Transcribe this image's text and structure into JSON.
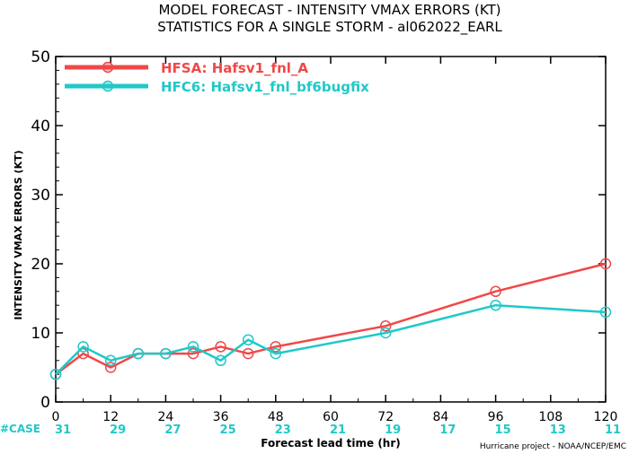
{
  "chart_data": {
    "type": "line",
    "title": "MODEL FORECAST - INTENSITY VMAX ERRORS (KT)",
    "subtitle": "STATISTICS FOR A SINGLE STORM - al062022_EARL",
    "xlabel": "Forecast lead time (hr)",
    "ylabel": "INTENSITY VMAX ERRORS (KT)",
    "xlim": [
      0,
      120
    ],
    "ylim": [
      0,
      50
    ],
    "xticks": [
      0,
      12,
      24,
      36,
      48,
      60,
      72,
      84,
      96,
      108,
      120
    ],
    "yticks": [
      0,
      10,
      20,
      30,
      40,
      50
    ],
    "legend_position": "top-left",
    "grid": false,
    "series": [
      {
        "name": "HFSA: Hafsv1_fnl_A",
        "color": "#f04848",
        "x": [
          0,
          6,
          12,
          18,
          24,
          30,
          36,
          42,
          48,
          72,
          96,
          120
        ],
        "values": [
          4,
          7,
          5,
          7,
          7,
          7,
          8,
          7,
          8,
          11,
          16,
          20
        ]
      },
      {
        "name": "HFC6: Hafsv1_fnl_bf6bugfix",
        "color": "#20c8c8",
        "x": [
          0,
          6,
          12,
          18,
          24,
          30,
          36,
          42,
          48,
          72,
          96,
          120
        ],
        "values": [
          4,
          8,
          6,
          7,
          7,
          8,
          6,
          9,
          7,
          10,
          14,
          13
        ]
      }
    ],
    "cases": {
      "label": "#CASE",
      "x": [
        0,
        12,
        24,
        36,
        48,
        60,
        72,
        84,
        96,
        108,
        120
      ],
      "values": [
        "31",
        "29",
        "27",
        "25",
        "23",
        "21",
        "19",
        "17",
        "15",
        "13",
        "11"
      ],
      "color": "#20c8c8"
    },
    "credit": "Hurricane project - NOAA/NCEP/EMC"
  }
}
